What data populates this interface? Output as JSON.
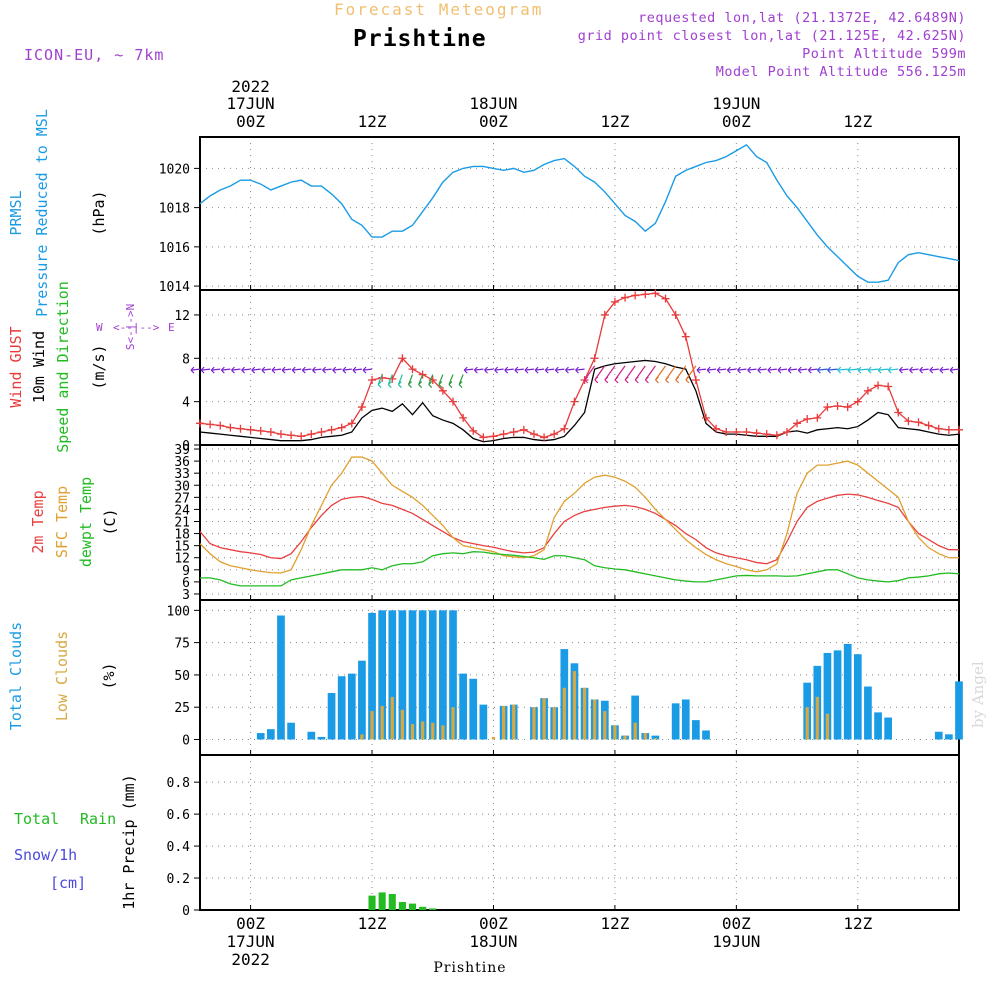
{
  "header": {
    "subtitle": "Forecast Meteogram",
    "title": "Prishtine",
    "model": "ICON-EU, ~ 7km",
    "requested": "requested lon,lat (21.1372E, 42.6489N)",
    "grid_point": "grid point closest lon,lat (21.125E, 42.625N)",
    "point_alt": "Point Altitude 599m",
    "model_alt": "Model Point Altitude 556.125m",
    "credit": "by Angel",
    "footer_station": "Prishtine"
  },
  "colors": {
    "pressure": "#1a9be6",
    "gust": "#e83b3b",
    "wind": "#000000",
    "dir_label": "#22bb22",
    "compass": "#a040d0",
    "t2m": "#e84040",
    "tsfc": "#e0a030",
    "dew": "#22bb22",
    "total_cloud": "#1a9be6",
    "low_cloud": "#d8a840",
    "rain": "#22bb22",
    "snow": "#4a4ae0",
    "header_purple": "#a040d0",
    "subtitle": "#f0c070"
  },
  "time_axis": {
    "top_year": "2022",
    "labels": [
      {
        "t": 0,
        "top": "17JUN 00Z",
        "bottom": "00Z 17JUN 2022"
      },
      {
        "t": 12,
        "top": "12Z",
        "bottom": "12Z"
      },
      {
        "t": 24,
        "top": "18JUN 00Z",
        "bottom": "00Z 18JUN"
      },
      {
        "t": 36,
        "top": "12Z",
        "bottom": "12Z"
      },
      {
        "t": 48,
        "top": "19JUN 00Z",
        "bottom": "00Z 19JUN"
      },
      {
        "t": 60,
        "top": "12Z",
        "bottom": "12Z"
      }
    ]
  },
  "panels": {
    "pressure": {
      "labels": [
        "PRMSL",
        "Pressure Reduced to MSL",
        "(hPa)"
      ],
      "ticks": [
        "1014",
        "1016",
        "1018",
        "1020"
      ]
    },
    "wind": {
      "labels": [
        "Wind GUST",
        "10m Wind",
        "Speed and Direction",
        "(m/s)"
      ],
      "ticks": [
        "0",
        "4",
        "8",
        "12"
      ],
      "compass": {
        "n": "N",
        "s": "S",
        "w": "W",
        "e": "E"
      }
    },
    "temp": {
      "labels": [
        "2m Temp",
        "SFC Temp",
        "dewpt Temp",
        "(C)"
      ],
      "ticks": [
        "3",
        "6",
        "9",
        "12",
        "15",
        "18",
        "21",
        "24",
        "27",
        "30",
        "33",
        "36",
        "39"
      ]
    },
    "clouds": {
      "labels": [
        "Total Clouds",
        "Low Clouds",
        "(%)"
      ],
      "ticks": [
        "0",
        "25",
        "50",
        "75",
        "100"
      ]
    },
    "precip": {
      "labels": [
        "Total",
        "Rain",
        "Snow/1h",
        "[cm]",
        "1hr Precip (mm)"
      ],
      "ticks": [
        "0",
        "0.2",
        "0.4",
        "0.6",
        "0.8"
      ]
    }
  },
  "chart_data": [
    {
      "type": "line",
      "title": "PRMSL Pressure Reduced to MSL",
      "ylabel": "(hPa)",
      "ylim": [
        1013.8,
        1021.6
      ],
      "x": [
        -5,
        -4,
        -3,
        -2,
        -1,
        0,
        1,
        2,
        3,
        4,
        5,
        6,
        7,
        8,
        9,
        10,
        11,
        12,
        13,
        14,
        15,
        16,
        17,
        18,
        19,
        20,
        21,
        22,
        23,
        24,
        25,
        26,
        27,
        28,
        29,
        30,
        31,
        32,
        33,
        34,
        35,
        36,
        37,
        38,
        39,
        40,
        41,
        42,
        43,
        44,
        45,
        46,
        47,
        48,
        49,
        50,
        51,
        52,
        53,
        54,
        55,
        56,
        57,
        58,
        59,
        60,
        61,
        62,
        63,
        64,
        65,
        66,
        67,
        68,
        69,
        70
      ],
      "series": [
        {
          "name": "PRMSL",
          "values": [
            1018.2,
            1018.6,
            1018.9,
            1019.1,
            1019.4,
            1019.4,
            1019.2,
            1018.9,
            1019.1,
            1019.3,
            1019.4,
            1019.1,
            1019.1,
            1018.7,
            1018.2,
            1017.4,
            1017.1,
            1016.5,
            1016.5,
            1016.8,
            1016.8,
            1017.1,
            1017.8,
            1018.5,
            1019.3,
            1019.8,
            1020.0,
            1020.1,
            1020.1,
            1020.0,
            1019.9,
            1020.0,
            1019.8,
            1019.9,
            1020.2,
            1020.4,
            1020.5,
            1020.1,
            1019.6,
            1019.3,
            1018.8,
            1018.2,
            1017.6,
            1017.3,
            1016.8,
            1017.2,
            1018.3,
            1019.6,
            1019.9,
            1020.1,
            1020.3,
            1020.4,
            1020.6,
            1020.9,
            1021.2,
            1020.6,
            1020.3,
            1019.4,
            1018.6,
            1018.0,
            1017.3,
            1016.6,
            1016.0,
            1015.5,
            1015.0,
            1014.5,
            1014.2,
            1014.2,
            1014.3,
            1015.2,
            1015.6,
            1015.7,
            1015.6,
            1015.5,
            1015.4,
            1015.3
          ]
        }
      ]
    },
    {
      "type": "line",
      "title": "Wind GUST / 10m Wind Speed and Direction",
      "ylabel": "(m/s)",
      "ylim": [
        0,
        14.3
      ],
      "x": [
        -5,
        -4,
        -3,
        -2,
        -1,
        0,
        1,
        2,
        3,
        4,
        5,
        6,
        7,
        8,
        9,
        10,
        11,
        12,
        13,
        14,
        15,
        16,
        17,
        18,
        19,
        20,
        21,
        22,
        23,
        24,
        25,
        26,
        27,
        28,
        29,
        30,
        31,
        32,
        33,
        34,
        35,
        36,
        37,
        38,
        39,
        40,
        41,
        42,
        43,
        44,
        45,
        46,
        47,
        48,
        49,
        50,
        51,
        52,
        53,
        54,
        55,
        56,
        57,
        58,
        59,
        60,
        61,
        62,
        63,
        64,
        65,
        66,
        67,
        68,
        69,
        70
      ],
      "series": [
        {
          "name": "Wind GUST",
          "values": [
            2.0,
            1.9,
            1.8,
            1.6,
            1.5,
            1.4,
            1.3,
            1.2,
            1.0,
            0.9,
            0.8,
            1.0,
            1.2,
            1.4,
            1.6,
            2.0,
            3.5,
            6.0,
            6.2,
            6.1,
            8.0,
            7.0,
            6.5,
            6.0,
            5.0,
            4.0,
            2.5,
            1.3,
            0.7,
            0.8,
            1.0,
            1.2,
            1.4,
            1.0,
            0.7,
            1.0,
            1.5,
            4.0,
            6.0,
            8.0,
            12.0,
            13.2,
            13.6,
            13.8,
            13.9,
            14.0,
            13.5,
            12.0,
            10.0,
            6.0,
            2.5,
            1.5,
            1.2,
            1.2,
            1.2,
            1.1,
            1.0,
            0.9,
            1.2,
            2.0,
            2.4,
            2.5,
            3.5,
            3.6,
            3.5,
            4.0,
            5.0,
            5.5,
            5.4,
            3.0,
            2.2,
            2.1,
            1.8,
            1.5,
            1.4,
            1.4
          ]
        },
        {
          "name": "10m Wind",
          "values": [
            1.2,
            1.1,
            1.0,
            0.9,
            0.8,
            0.7,
            0.6,
            0.5,
            0.4,
            0.4,
            0.4,
            0.5,
            0.7,
            0.8,
            0.9,
            1.2,
            2.5,
            3.2,
            3.4,
            3.1,
            3.8,
            2.8,
            3.9,
            2.7,
            2.3,
            2.0,
            1.4,
            0.6,
            0.3,
            0.4,
            0.6,
            0.7,
            0.7,
            0.5,
            0.4,
            0.5,
            0.8,
            1.8,
            3.0,
            7.0,
            7.3,
            7.5,
            7.6,
            7.7,
            7.8,
            7.7,
            7.5,
            7.2,
            7.0,
            5.0,
            2.0,
            1.2,
            1.0,
            1.0,
            0.9,
            0.8,
            0.8,
            0.8,
            1.2,
            1.3,
            1.1,
            1.4,
            1.5,
            1.6,
            1.5,
            1.7,
            2.3,
            3.0,
            2.8,
            1.6,
            1.5,
            1.4,
            1.2,
            1.0,
            0.9,
            1.0
          ]
        }
      ]
    },
    {
      "type": "line",
      "title": "2m Temp / SFC Temp / dewpt Temp",
      "ylabel": "(C)",
      "ylim": [
        3,
        39
      ],
      "x": [
        -5,
        -4,
        -3,
        -2,
        -1,
        0,
        1,
        2,
        3,
        4,
        5,
        6,
        7,
        8,
        9,
        10,
        11,
        12,
        13,
        14,
        15,
        16,
        17,
        18,
        19,
        20,
        21,
        22,
        23,
        24,
        25,
        26,
        27,
        28,
        29,
        30,
        31,
        32,
        33,
        34,
        35,
        36,
        37,
        38,
        39,
        40,
        41,
        42,
        43,
        44,
        45,
        46,
        47,
        48,
        49,
        50,
        51,
        52,
        53,
        54,
        55,
        56,
        57,
        58,
        59,
        60,
        61,
        62,
        63,
        64,
        65,
        66,
        67,
        68,
        69,
        70
      ],
      "series": [
        {
          "name": "2m Temp",
          "values": [
            18.5,
            15.5,
            14.5,
            14.0,
            13.5,
            13.2,
            12.8,
            12.0,
            11.8,
            13.0,
            16.0,
            19.5,
            22.5,
            25.0,
            26.5,
            27.0,
            27.2,
            26.5,
            25.5,
            25.0,
            24.0,
            23.0,
            21.5,
            20.0,
            18.5,
            17.0,
            16.0,
            15.5,
            15.0,
            14.6,
            14.0,
            13.5,
            13.2,
            13.4,
            14.5,
            18.0,
            21.0,
            22.5,
            23.5,
            24.0,
            24.5,
            24.8,
            25.0,
            24.7,
            24.0,
            23.0,
            21.5,
            20.0,
            18.0,
            16.5,
            14.5,
            13.2,
            12.5,
            12.0,
            11.5,
            10.8,
            10.5,
            11.5,
            16.0,
            21.0,
            24.5,
            26.0,
            26.8,
            27.5,
            27.8,
            27.6,
            27.0,
            26.2,
            25.5,
            24.5,
            21.0,
            18.0,
            16.5,
            15.0,
            14.0,
            14.0
          ]
        },
        {
          "name": "SFC Temp",
          "values": [
            15.5,
            13.0,
            11.0,
            10.0,
            9.5,
            9.0,
            8.6,
            8.3,
            8.2,
            9.0,
            14.0,
            20.0,
            25.0,
            30.0,
            33.0,
            37.0,
            37.0,
            36.0,
            33.0,
            30.0,
            28.5,
            27.0,
            25.0,
            22.5,
            20.0,
            17.0,
            15.0,
            14.5,
            14.0,
            13.5,
            12.5,
            12.2,
            12.0,
            12.5,
            14.0,
            22.0,
            26.0,
            28.0,
            30.5,
            32.0,
            32.5,
            32.0,
            31.0,
            29.5,
            27.0,
            24.0,
            21.5,
            19.0,
            16.5,
            14.5,
            12.8,
            11.5,
            10.5,
            9.8,
            9.0,
            8.5,
            9.0,
            10.5,
            18.0,
            28.0,
            33.0,
            35.0,
            35.0,
            35.5,
            36.0,
            35.0,
            33.0,
            31.0,
            29.0,
            27.0,
            21.0,
            17.0,
            14.5,
            13.0,
            12.0,
            12.0
          ]
        },
        {
          "name": "dewpt Temp",
          "values": [
            7.0,
            7.0,
            6.5,
            5.5,
            5.0,
            5.0,
            5.0,
            5.0,
            5.0,
            6.5,
            7.0,
            7.5,
            8.0,
            8.5,
            9.0,
            9.0,
            9.0,
            9.5,
            9.0,
            10.0,
            10.5,
            10.5,
            11.0,
            12.5,
            13.0,
            13.2,
            13.0,
            13.5,
            13.4,
            13.0,
            12.8,
            12.6,
            12.3,
            12.0,
            11.6,
            12.5,
            12.5,
            12.0,
            11.5,
            10.0,
            9.5,
            9.2,
            9.0,
            8.5,
            8.0,
            7.5,
            7.0,
            6.5,
            6.2,
            6.0,
            6.0,
            6.5,
            7.0,
            7.5,
            7.6,
            7.5,
            7.5,
            7.5,
            7.4,
            7.5,
            8.0,
            8.5,
            9.0,
            9.0,
            8.0,
            7.0,
            6.5,
            6.2,
            6.0,
            6.3,
            7.0,
            7.2,
            7.5,
            8.0,
            8.2,
            8.0
          ]
        }
      ]
    },
    {
      "type": "bar",
      "title": "Total Clouds / Low Clouds",
      "ylabel": "(%)",
      "ylim": [
        0,
        100
      ],
      "x": [
        -5,
        -4,
        -3,
        -2,
        -1,
        0,
        1,
        2,
        3,
        4,
        5,
        6,
        7,
        8,
        9,
        10,
        11,
        12,
        13,
        14,
        15,
        16,
        17,
        18,
        19,
        20,
        21,
        22,
        23,
        24,
        25,
        26,
        27,
        28,
        29,
        30,
        31,
        32,
        33,
        34,
        35,
        36,
        37,
        38,
        39,
        40,
        41,
        42,
        43,
        44,
        45,
        46,
        47,
        48,
        49,
        50,
        51,
        52,
        53,
        54,
        55,
        56,
        57,
        58,
        59,
        60,
        61,
        62,
        63,
        64,
        65,
        66,
        67,
        68,
        69,
        70
      ],
      "series": [
        {
          "name": "Total Clouds",
          "values": [
            0,
            0,
            0,
            0,
            0,
            0,
            5,
            8,
            96,
            13,
            0,
            6,
            2,
            36,
            49,
            51,
            61,
            98,
            100,
            100,
            100,
            100,
            100,
            100,
            100,
            100,
            51,
            47,
            27,
            0,
            26,
            27,
            0,
            25,
            32,
            25,
            70,
            59,
            40,
            31,
            30,
            11,
            3,
            34,
            5,
            3,
            0,
            28,
            31,
            15,
            7,
            0,
            0,
            0,
            0,
            0,
            0,
            0,
            0,
            0,
            44,
            57,
            67,
            69,
            74,
            66,
            41,
            21,
            17,
            0,
            0,
            0,
            0,
            6,
            4,
            45
          ]
        },
        {
          "name": "Low Clouds",
          "values": [
            0,
            0,
            0,
            0,
            0,
            0,
            0,
            0,
            0,
            0,
            0,
            0,
            0,
            0,
            0,
            0,
            4,
            22,
            26,
            33,
            23,
            12,
            14,
            13,
            11,
            25,
            0,
            0,
            0,
            2,
            26,
            27,
            0,
            25,
            32,
            25,
            40,
            53,
            40,
            31,
            22,
            11,
            3,
            13,
            5,
            1,
            0,
            0,
            0,
            0,
            0,
            0,
            0,
            0,
            0,
            0,
            0,
            0,
            0,
            0,
            25,
            33,
            20,
            0,
            0,
            0,
            0,
            0,
            0,
            0,
            0,
            0,
            0,
            0,
            0,
            0
          ]
        }
      ]
    },
    {
      "type": "bar",
      "title": "Total Rain / Snow",
      "ylabel": "1hr Precip (mm)",
      "ylim": [
        0,
        0.97
      ],
      "x": [
        12,
        13,
        14,
        15,
        16,
        17,
        18
      ],
      "series": [
        {
          "name": "Total Rain",
          "values": [
            0.09,
            0.11,
            0.1,
            0.05,
            0.04,
            0.02,
            0.01
          ]
        }
      ]
    }
  ]
}
